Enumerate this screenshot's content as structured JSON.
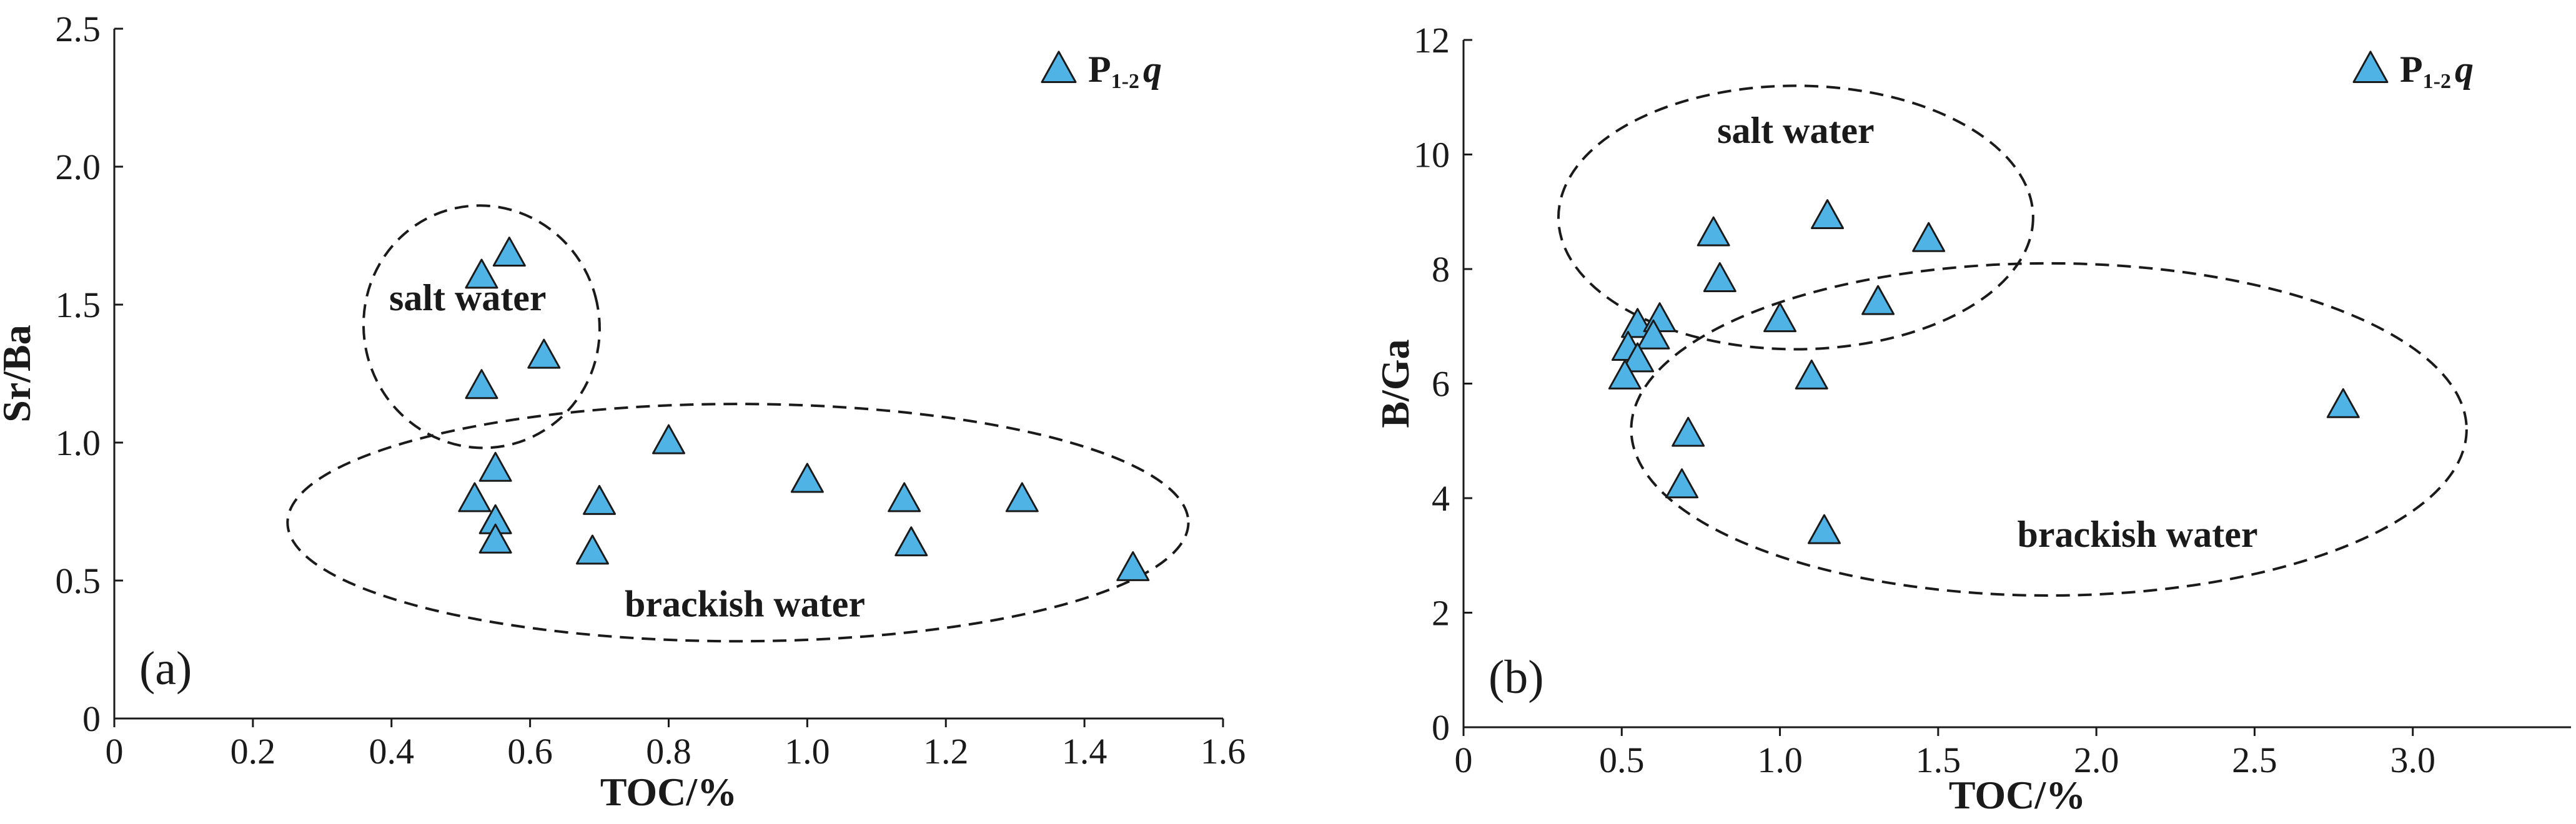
{
  "colors": {
    "marker_fill": "#4fb3e6",
    "marker_stroke": "#1a1a1a",
    "axis": "#1a1a1a"
  },
  "chart_data": [
    {
      "type": "scatter",
      "panel_label": "(a)",
      "xlabel": "TOC/%",
      "ylabel": "Sr/Ba",
      "xlim": [
        0,
        1.6
      ],
      "ylim": [
        0,
        2.5
      ],
      "x_ticks": [
        "0",
        "0.2",
        "0.4",
        "0.6",
        "0.8",
        "1.0",
        "1.2",
        "1.4",
        "1.6"
      ],
      "y_ticks": [
        "0",
        "0.5",
        "1.0",
        "1.5",
        "2.0",
        "2.5"
      ],
      "grid": false,
      "legend": {
        "position": "top-right",
        "marker": "triangle",
        "label_main": "P",
        "label_sub": "1-2",
        "label_italic": "q"
      },
      "series": [
        {
          "marker": "triangle",
          "x": [
            0.53,
            0.57,
            0.62,
            0.53,
            0.55,
            0.52,
            0.55,
            0.55,
            0.7,
            0.69,
            0.8,
            1.0,
            1.14,
            1.15,
            1.31,
            1.47
          ],
          "y": [
            1.6,
            1.68,
            1.31,
            1.2,
            0.9,
            0.79,
            0.71,
            0.64,
            0.78,
            0.6,
            1.0,
            0.86,
            0.79,
            0.63,
            0.79,
            0.54
          ]
        }
      ],
      "regions": [
        {
          "label": "salt water",
          "center": [
            0.53,
            1.42
          ],
          "radii": [
            0.17,
            0.44
          ],
          "rotation": -15,
          "label_at": [
            0.51,
            1.48
          ]
        },
        {
          "label": "brackish water",
          "center": [
            0.9,
            0.71
          ],
          "radii": [
            0.65,
            0.43
          ],
          "rotation": 0,
          "label_at": [
            0.91,
            0.37
          ]
        }
      ]
    },
    {
      "type": "scatter",
      "panel_label": "(b)",
      "xlabel": "TOC/%",
      "ylabel": "B/Ga",
      "xlim": [
        0,
        3.5
      ],
      "ylim": [
        0,
        12
      ],
      "x_ticks": [
        "0",
        "0.5",
        "1.0",
        "1.5",
        "2.0",
        "2.5",
        "3.0"
      ],
      "y_ticks": [
        "0",
        "2",
        "4",
        "6",
        "8",
        "10",
        "12"
      ],
      "grid": false,
      "legend": {
        "position": "top-right",
        "marker": "triangle",
        "label_main": "P",
        "label_sub": "1-2",
        "label_italic": "q"
      },
      "series": [
        {
          "marker": "triangle",
          "x": [
            0.79,
            1.15,
            1.47,
            0.81,
            1.31,
            1.0,
            0.55,
            0.62,
            0.6,
            0.52,
            0.55,
            0.51,
            1.1,
            0.71,
            0.69,
            1.14,
            2.78
          ],
          "y": [
            8.6,
            8.9,
            8.5,
            7.8,
            7.4,
            7.1,
            7.0,
            7.1,
            6.8,
            6.6,
            6.4,
            6.1,
            6.1,
            5.1,
            4.2,
            3.4,
            5.6
          ]
        }
      ],
      "regions": [
        {
          "label": "salt water",
          "center": [
            1.05,
            8.9
          ],
          "radii": [
            0.75,
            2.3
          ],
          "rotation": 0,
          "label_at": [
            1.05,
            10.2
          ]
        },
        {
          "label": "brackish water",
          "center": [
            1.85,
            5.2
          ],
          "radii": [
            1.32,
            2.9
          ],
          "rotation": 0,
          "label_at": [
            2.13,
            3.15
          ]
        }
      ]
    }
  ]
}
